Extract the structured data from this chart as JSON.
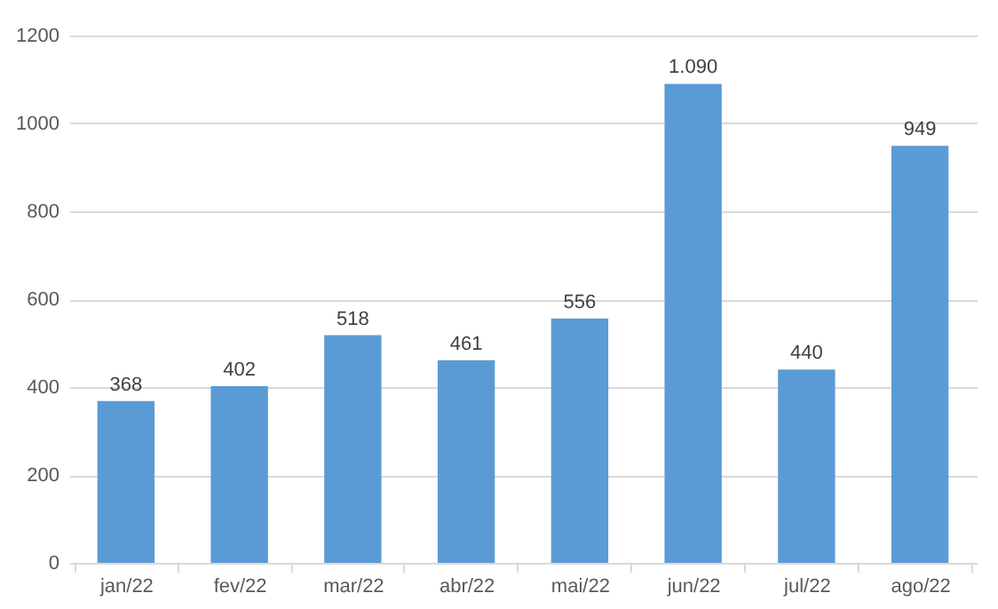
{
  "chart_data": {
    "type": "bar",
    "categories": [
      "jan/22",
      "fev/22",
      "mar/22",
      "abr/22",
      "mai/22",
      "jun/22",
      "jul/22",
      "ago/22"
    ],
    "values": [
      368,
      402,
      518,
      461,
      556,
      1090,
      440,
      949
    ],
    "value_labels": [
      "368",
      "402",
      "518",
      "461",
      "556",
      "1.090",
      "440",
      "949"
    ],
    "color": "#5b9bd5",
    "ylim": [
      0,
      1200
    ],
    "yticks": [
      0,
      200,
      400,
      600,
      800,
      1000,
      1200
    ],
    "grid": "y"
  }
}
